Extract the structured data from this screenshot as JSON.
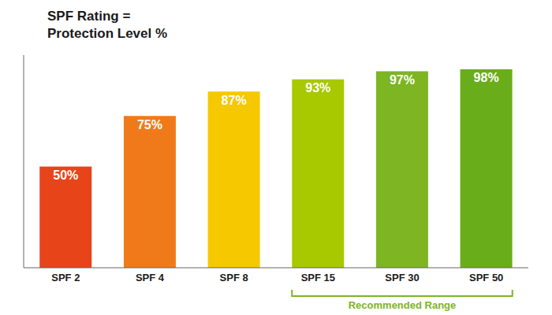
{
  "chart_data": {
    "type": "bar",
    "title": "SPF Rating =",
    "subtitle": "Protection Level %",
    "categories": [
      "SPF 2",
      "SPF 4",
      "SPF 8",
      "SPF 15",
      "SPF 30",
      "SPF 50"
    ],
    "values": [
      50,
      75,
      87,
      93,
      97,
      98
    ],
    "value_labels": [
      "50%",
      "75%",
      "87%",
      "93%",
      "97%",
      "98%"
    ],
    "colors": [
      "#E8441A",
      "#F07A1A",
      "#F5C800",
      "#A8C800",
      "#7DB523",
      "#6AAD1A"
    ],
    "ylim": [
      0,
      105
    ],
    "grid": false,
    "data_labels": true,
    "tick_labels": "x",
    "annotations": [
      {
        "text": "Recommended Range",
        "from": "SPF 15",
        "to": "SPF 50",
        "color": "#7DB523"
      }
    ]
  }
}
